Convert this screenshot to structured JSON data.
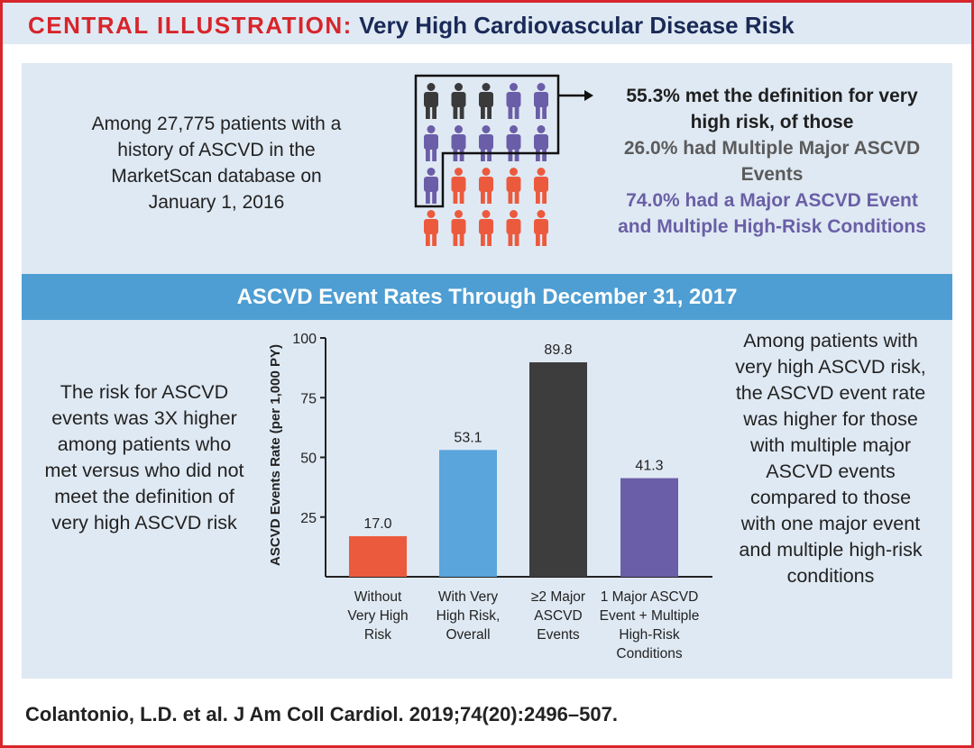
{
  "header": {
    "lead": "CENTRAL ILLUSTRATION:",
    "title": "Very High Cardiovascular Disease Risk"
  },
  "top_panel": {
    "intro_lines": [
      "Among 27,775 patients with a",
      "history of ASCVD in the",
      "MarketScan database on",
      "January 1, 2016"
    ],
    "callout": {
      "main_lines": [
        "55.3% met the definition for very",
        "high risk, of those"
      ],
      "multiple_lines": [
        "26.0% had Multiple Major ASCVD",
        "Events"
      ],
      "single_lines": [
        "74.0% had a Major ASCVD Event",
        "and Multiple High-Risk Conditions"
      ]
    },
    "pictogram": {
      "rows": [
        [
          "dark",
          "dark",
          "dark",
          "purple",
          "purple"
        ],
        [
          "purple",
          "purple",
          "purple",
          "purple",
          "purple"
        ],
        [
          "purple",
          "red",
          "red",
          "red",
          "red"
        ],
        [
          "red",
          "red",
          "red",
          "red",
          "red"
        ]
      ],
      "colors": {
        "dark": "#3a3a3a",
        "purple": "#6b5ea8",
        "red": "#ec5a3e"
      }
    }
  },
  "band": {
    "title": "ASCVD Event Rates Through December 31, 2017"
  },
  "bottom_panel": {
    "left_lines": [
      "The risk for ASCVD",
      "events was 3X higher",
      "among patients who",
      "met versus who did not",
      "meet the definition of",
      "very high ASCVD risk"
    ],
    "right_lines": [
      "Among patients with",
      "very high ASCVD risk,",
      "the ASCVD event rate",
      "was higher for those",
      "with multiple major",
      "ASCVD events",
      "compared to those",
      "with one major event",
      "and multiple high-risk",
      "conditions"
    ]
  },
  "chart_data": {
    "type": "bar",
    "ylabel": "ASCVD Events Rate (per 1,000 PY)",
    "ylim": [
      0,
      100
    ],
    "yticks": [
      25,
      50,
      75,
      100
    ],
    "categories": [
      [
        "Without",
        "Very High",
        "Risk"
      ],
      [
        "With Very",
        "High Risk,",
        "Overall"
      ],
      [
        "≥2 Major",
        "ASCVD",
        "Events"
      ],
      [
        "1 Major ASCVD",
        "Event + Multiple",
        "High-Risk",
        "Conditions"
      ]
    ],
    "values": [
      17.0,
      53.1,
      89.8,
      41.3
    ],
    "value_labels": [
      "17.0",
      "53.1",
      "89.8",
      "41.3"
    ],
    "colors": [
      "#ec5a3e",
      "#5aa5dc",
      "#3d3d3d",
      "#6b5ea8"
    ]
  },
  "citation": "Colantonio, L.D. et al. J Am Coll Cardiol. 2019;74(20):2496–507."
}
